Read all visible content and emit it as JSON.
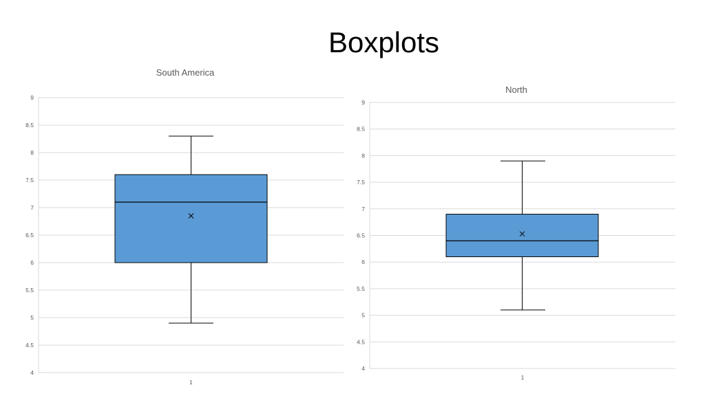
{
  "slide": {
    "title": "Boxplots"
  },
  "colors": {
    "box_fill": "#5B9BD5",
    "stroke": "#000000",
    "grid": "#D9D9D9",
    "text": "#595959"
  },
  "chart_data": [
    {
      "type": "box",
      "title": "South America",
      "categories": [
        "1"
      ],
      "ylim": [
        4,
        9
      ],
      "yticks": [
        "4",
        "4.5",
        "5",
        "5.5",
        "6",
        "6.5",
        "7",
        "7.5",
        "8",
        "8.5",
        "9"
      ],
      "grid": true,
      "legend": "none",
      "box": {
        "min": 4.9,
        "q1": 6.0,
        "median": 7.1,
        "q3": 7.6,
        "max": 8.3,
        "mean": 6.85
      }
    },
    {
      "type": "box",
      "title": "North",
      "categories": [
        "1"
      ],
      "ylim": [
        4,
        9
      ],
      "yticks": [
        "4",
        "4.5",
        "5",
        "5.5",
        "6",
        "6.5",
        "7",
        "7.5",
        "8",
        "8.5",
        "9"
      ],
      "grid": true,
      "legend": "none",
      "box": {
        "min": 5.1,
        "q1": 6.1,
        "median": 6.4,
        "q3": 6.9,
        "max": 7.9,
        "mean": 6.53
      }
    }
  ]
}
